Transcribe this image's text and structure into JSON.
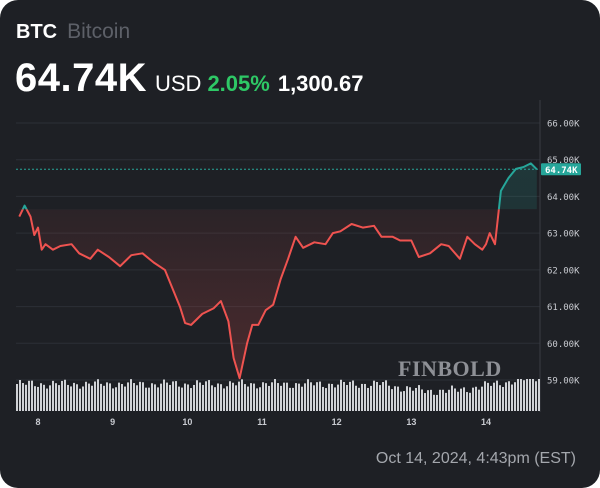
{
  "header": {
    "symbol": "BTC",
    "name": "Bitcoin",
    "price": "64.74K",
    "currency": "USD",
    "change_pct": "2.05%",
    "change_abs": "1,300.67"
  },
  "timestamp": "Oct 14, 2024, 4:43pm (EST)",
  "watermark": "FINBOLD",
  "colors": {
    "background": "#1e2025",
    "up": "#26a69a",
    "down": "#ef5350",
    "positive_text": "#2ec866",
    "grid": "#2c2f36",
    "volume": "#d0d2d6"
  },
  "last_price_label": "64.74K",
  "chart_data": {
    "type": "line",
    "title": "BTC Bitcoin",
    "xlabel": "",
    "ylabel": "USD",
    "ylim": [
      58700,
      66500
    ],
    "y_ticks": [
      "66.00K",
      "65.00K",
      "64.00K",
      "63.00K",
      "62.00K",
      "61.00K",
      "60.00K",
      "59.00K"
    ],
    "x_ticks": [
      "8",
      "9",
      "10",
      "11",
      "12",
      "13",
      "14"
    ],
    "grid": true,
    "legend": "none",
    "reference_line": {
      "value": 64740,
      "label": "64.74K",
      "style": "dotted"
    },
    "series": [
      {
        "name": "BTC/USD price",
        "x": [
          7.75,
          7.82,
          7.9,
          7.95,
          8.0,
          8.05,
          8.1,
          8.2,
          8.3,
          8.45,
          8.55,
          8.7,
          8.8,
          8.95,
          9.1,
          9.25,
          9.4,
          9.55,
          9.7,
          9.8,
          9.9,
          9.97,
          10.05,
          10.2,
          10.35,
          10.45,
          10.55,
          10.62,
          10.7,
          10.8,
          10.87,
          10.95,
          11.05,
          11.15,
          11.25,
          11.35,
          11.45,
          11.55,
          11.7,
          11.85,
          11.95,
          12.05,
          12.2,
          12.35,
          12.5,
          12.6,
          12.75,
          12.85,
          13.0,
          13.1,
          13.25,
          13.4,
          13.5,
          13.65,
          13.75,
          13.85,
          13.95,
          14.0,
          14.05,
          14.12,
          14.2,
          14.3,
          14.4,
          14.5,
          14.6,
          14.68
        ],
        "values": [
          63450,
          63750,
          63450,
          62950,
          63150,
          62550,
          62700,
          62550,
          62650,
          62700,
          62450,
          62300,
          62550,
          62350,
          62100,
          62400,
          62450,
          62200,
          62000,
          61500,
          61000,
          60550,
          60500,
          60800,
          60950,
          61150,
          60600,
          59600,
          59050,
          60000,
          60500,
          60500,
          60900,
          61050,
          61750,
          62300,
          62900,
          62600,
          62750,
          62700,
          63000,
          63050,
          63250,
          63150,
          63200,
          62900,
          62900,
          62800,
          62800,
          62350,
          62450,
          62700,
          62650,
          62300,
          62900,
          62700,
          62550,
          62700,
          63000,
          62700,
          64150,
          64500,
          64750,
          64800,
          64900,
          64740
        ],
        "color_above_open": "#26a69a",
        "color_below_open": "#ef5350",
        "open": 63650
      },
      {
        "name": "Volume",
        "type": "bar",
        "note": "relative volume bars beneath price, roughly uniform with dip around Oct 13 and rise late Oct 14"
      }
    ]
  }
}
